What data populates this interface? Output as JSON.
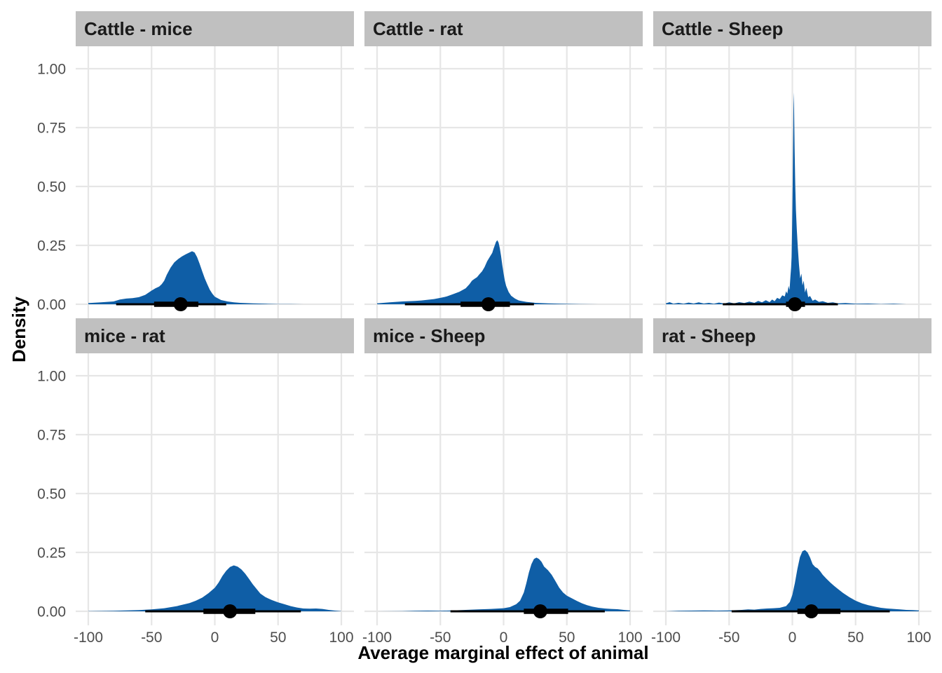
{
  "chart_data": {
    "type": "area",
    "description_of_marks": "posterior density (halfeye) per contrast with point estimate and interval",
    "xlabel": "Average marginal effect of animal",
    "ylabel": "Density",
    "xlim": [
      -100,
      100
    ],
    "ylim": [
      0,
      1.0
    ],
    "x_ticks": [
      -100,
      -50,
      0,
      50,
      100
    ],
    "x_tick_labels": [
      "-100",
      "-50",
      "0",
      "50",
      "100"
    ],
    "y_ticks": [
      0,
      0.25,
      0.5,
      0.75,
      1.0
    ],
    "y_tick_labels": [
      "0.00",
      "0.25",
      "0.50",
      "0.75",
      "1.00"
    ],
    "grid": true,
    "colors": {
      "density_fill": "#0f5ea6",
      "interval": "#000000",
      "strip": "#c0c0c0",
      "grid": "#e6e6e6"
    },
    "panels": [
      {
        "title": "Cattle - mice",
        "density": [
          [
            -100,
            0.005
          ],
          [
            -90,
            0.008
          ],
          [
            -80,
            0.012
          ],
          [
            -75,
            0.02
          ],
          [
            -70,
            0.024
          ],
          [
            -65,
            0.026
          ],
          [
            -60,
            0.03
          ],
          [
            -55,
            0.04
          ],
          [
            -50,
            0.058
          ],
          [
            -47,
            0.068
          ],
          [
            -44,
            0.075
          ],
          [
            -42,
            0.085
          ],
          [
            -40,
            0.1
          ],
          [
            -38,
            0.125
          ],
          [
            -35,
            0.155
          ],
          [
            -32,
            0.178
          ],
          [
            -29,
            0.192
          ],
          [
            -26,
            0.203
          ],
          [
            -23,
            0.212
          ],
          [
            -20,
            0.22
          ],
          [
            -18,
            0.225
          ],
          [
            -16,
            0.22
          ],
          [
            -14,
            0.2
          ],
          [
            -12,
            0.172
          ],
          [
            -10,
            0.14
          ],
          [
            -8,
            0.11
          ],
          [
            -6,
            0.085
          ],
          [
            -4,
            0.062
          ],
          [
            -2,
            0.045
          ],
          [
            0,
            0.032
          ],
          [
            5,
            0.018
          ],
          [
            10,
            0.012
          ],
          [
            15,
            0.008
          ],
          [
            20,
            0.006
          ],
          [
            30,
            0.004
          ],
          [
            40,
            0.002
          ],
          [
            50,
            0.001
          ],
          [
            60,
            0.001
          ],
          [
            70,
            0.0
          ]
        ],
        "point": -27,
        "interval_66": [
          -48,
          -13
        ],
        "interval_95": [
          -78,
          9
        ]
      },
      {
        "title": "Cattle - rat",
        "density": [
          [
            -100,
            0.004
          ],
          [
            -95,
            0.006
          ],
          [
            -90,
            0.008
          ],
          [
            -85,
            0.01
          ],
          [
            -80,
            0.012
          ],
          [
            -75,
            0.013
          ],
          [
            -70,
            0.014
          ],
          [
            -65,
            0.016
          ],
          [
            -60,
            0.019
          ],
          [
            -55,
            0.022
          ],
          [
            -50,
            0.027
          ],
          [
            -45,
            0.033
          ],
          [
            -40,
            0.043
          ],
          [
            -35,
            0.053
          ],
          [
            -30,
            0.068
          ],
          [
            -27,
            0.085
          ],
          [
            -25,
            0.1
          ],
          [
            -23,
            0.108
          ],
          [
            -21,
            0.115
          ],
          [
            -19,
            0.128
          ],
          [
            -17,
            0.14
          ],
          [
            -15,
            0.158
          ],
          [
            -13,
            0.182
          ],
          [
            -11,
            0.2
          ],
          [
            -9,
            0.218
          ],
          [
            -8,
            0.235
          ],
          [
            -7,
            0.25
          ],
          [
            -6,
            0.265
          ],
          [
            -5,
            0.272
          ],
          [
            -4,
            0.262
          ],
          [
            -3,
            0.238
          ],
          [
            -2,
            0.205
          ],
          [
            -1,
            0.165
          ],
          [
            0,
            0.13
          ],
          [
            1,
            0.1
          ],
          [
            2,
            0.078
          ],
          [
            4,
            0.052
          ],
          [
            6,
            0.036
          ],
          [
            9,
            0.024
          ],
          [
            12,
            0.016
          ],
          [
            18,
            0.01
          ],
          [
            25,
            0.006
          ],
          [
            35,
            0.004
          ],
          [
            45,
            0.002
          ],
          [
            60,
            0.001
          ],
          [
            75,
            0.0
          ]
        ],
        "point": -12,
        "interval_66": [
          -34,
          5
        ],
        "interval_95": [
          -78,
          24
        ]
      },
      {
        "title": "Cattle - Sheep",
        "density": [
          [
            -100,
            0.004
          ],
          [
            -97,
            0.009
          ],
          [
            -94,
            0.002
          ],
          [
            -90,
            0.006
          ],
          [
            -86,
            0.002
          ],
          [
            -82,
            0.007
          ],
          [
            -78,
            0.003
          ],
          [
            -74,
            0.008
          ],
          [
            -70,
            0.003
          ],
          [
            -66,
            0.006
          ],
          [
            -62,
            0.002
          ],
          [
            -58,
            0.007
          ],
          [
            -54,
            0.003
          ],
          [
            -50,
            0.008
          ],
          [
            -46,
            0.004
          ],
          [
            -42,
            0.009
          ],
          [
            -38,
            0.005
          ],
          [
            -34,
            0.011
          ],
          [
            -30,
            0.006
          ],
          [
            -27,
            0.014
          ],
          [
            -24,
            0.008
          ],
          [
            -21,
            0.017
          ],
          [
            -18,
            0.009
          ],
          [
            -16,
            0.02
          ],
          [
            -14,
            0.013
          ],
          [
            -12,
            0.027
          ],
          [
            -10,
            0.022
          ],
          [
            -8,
            0.038
          ],
          [
            -6,
            0.033
          ],
          [
            -5,
            0.055
          ],
          [
            -4,
            0.045
          ],
          [
            -3,
            0.078
          ],
          [
            -2.2,
            0.06
          ],
          [
            -1.5,
            0.12
          ],
          [
            -1,
            0.155
          ],
          [
            -0.6,
            0.2
          ],
          [
            -0.3,
            0.3
          ],
          [
            0,
            0.4
          ],
          [
            0.3,
            0.52
          ],
          [
            0.6,
            0.7
          ],
          [
            0.9,
            0.85
          ],
          [
            1.1,
            0.9
          ],
          [
            1.4,
            0.82
          ],
          [
            1.8,
            0.66
          ],
          [
            2.3,
            0.5
          ],
          [
            2.8,
            0.4
          ],
          [
            3.5,
            0.32
          ],
          [
            4.3,
            0.24
          ],
          [
            5.2,
            0.17
          ],
          [
            6.2,
            0.11
          ],
          [
            7.2,
            0.13
          ],
          [
            8,
            0.08
          ],
          [
            9,
            0.1
          ],
          [
            10,
            0.05
          ],
          [
            11,
            0.07
          ],
          [
            12.5,
            0.03
          ],
          [
            14,
            0.035
          ],
          [
            16,
            0.015
          ],
          [
            18,
            0.02
          ],
          [
            21,
            0.01
          ],
          [
            24,
            0.013
          ],
          [
            28,
            0.006
          ],
          [
            32,
            0.008
          ],
          [
            36,
            0.004
          ],
          [
            42,
            0.005
          ],
          [
            50,
            0.002
          ],
          [
            60,
            0.003
          ],
          [
            70,
            0.001
          ],
          [
            80,
            0.002
          ],
          [
            90,
            0.0
          ],
          [
            98,
            0.0
          ]
        ],
        "point": 2,
        "interval_66": [
          -5,
          10
        ],
        "interval_95": [
          -55,
          36
        ]
      },
      {
        "title": "mice - rat",
        "density": [
          [
            -100,
            0.001
          ],
          [
            -80,
            0.002
          ],
          [
            -70,
            0.004
          ],
          [
            -60,
            0.005
          ],
          [
            -50,
            0.008
          ],
          [
            -40,
            0.013
          ],
          [
            -30,
            0.022
          ],
          [
            -20,
            0.035
          ],
          [
            -15,
            0.045
          ],
          [
            -10,
            0.058
          ],
          [
            -5,
            0.077
          ],
          [
            0,
            0.1
          ],
          [
            3,
            0.122
          ],
          [
            6,
            0.15
          ],
          [
            9,
            0.172
          ],
          [
            12,
            0.188
          ],
          [
            15,
            0.195
          ],
          [
            18,
            0.19
          ],
          [
            21,
            0.178
          ],
          [
            24,
            0.16
          ],
          [
            27,
            0.138
          ],
          [
            30,
            0.115
          ],
          [
            33,
            0.095
          ],
          [
            36,
            0.075
          ],
          [
            40,
            0.06
          ],
          [
            45,
            0.048
          ],
          [
            50,
            0.038
          ],
          [
            55,
            0.03
          ],
          [
            60,
            0.022
          ],
          [
            65,
            0.016
          ],
          [
            70,
            0.012
          ],
          [
            75,
            0.011
          ],
          [
            80,
            0.012
          ],
          [
            85,
            0.01
          ],
          [
            90,
            0.006
          ],
          [
            95,
            0.003
          ],
          [
            100,
            0.001
          ]
        ],
        "point": 12,
        "interval_66": [
          -9,
          32
        ],
        "interval_95": [
          -55,
          68
        ]
      },
      {
        "title": "mice - Sheep",
        "density": [
          [
            -100,
            0.0
          ],
          [
            -80,
            0.001
          ],
          [
            -70,
            0.002
          ],
          [
            -60,
            0.003
          ],
          [
            -50,
            0.002
          ],
          [
            -40,
            0.004
          ],
          [
            -30,
            0.006
          ],
          [
            -20,
            0.008
          ],
          [
            -10,
            0.01
          ],
          [
            0,
            0.013
          ],
          [
            5,
            0.018
          ],
          [
            10,
            0.03
          ],
          [
            13,
            0.045
          ],
          [
            16,
            0.08
          ],
          [
            18,
            0.12
          ],
          [
            20,
            0.165
          ],
          [
            22,
            0.2
          ],
          [
            24,
            0.222
          ],
          [
            26,
            0.228
          ],
          [
            28,
            0.222
          ],
          [
            30,
            0.21
          ],
          [
            32,
            0.19
          ],
          [
            35,
            0.175
          ],
          [
            38,
            0.155
          ],
          [
            41,
            0.128
          ],
          [
            44,
            0.1
          ],
          [
            47,
            0.08
          ],
          [
            50,
            0.066
          ],
          [
            54,
            0.055
          ],
          [
            58,
            0.044
          ],
          [
            62,
            0.034
          ],
          [
            66,
            0.026
          ],
          [
            70,
            0.02
          ],
          [
            75,
            0.015
          ],
          [
            80,
            0.012
          ],
          [
            85,
            0.01
          ],
          [
            90,
            0.009
          ],
          [
            95,
            0.006
          ],
          [
            100,
            0.004
          ]
        ],
        "point": 29,
        "interval_66": [
          16,
          51
        ],
        "interval_95": [
          -42,
          80
        ]
      },
      {
        "title": "rat - Sheep",
        "density": [
          [
            -100,
            0.0
          ],
          [
            -90,
            0.002
          ],
          [
            -80,
            0.003
          ],
          [
            -70,
            0.004
          ],
          [
            -60,
            0.003
          ],
          [
            -50,
            0.004
          ],
          [
            -40,
            0.006
          ],
          [
            -35,
            0.008
          ],
          [
            -30,
            0.007
          ],
          [
            -25,
            0.01
          ],
          [
            -20,
            0.012
          ],
          [
            -15,
            0.013
          ],
          [
            -10,
            0.015
          ],
          [
            -5,
            0.022
          ],
          [
            -2,
            0.04
          ],
          [
            0,
            0.07
          ],
          [
            2,
            0.12
          ],
          [
            4,
            0.18
          ],
          [
            6,
            0.23
          ],
          [
            8,
            0.255
          ],
          [
            10,
            0.26
          ],
          [
            12,
            0.25
          ],
          [
            14,
            0.228
          ],
          [
            16,
            0.2
          ],
          [
            18,
            0.188
          ],
          [
            20,
            0.182
          ],
          [
            22,
            0.17
          ],
          [
            24,
            0.155
          ],
          [
            27,
            0.138
          ],
          [
            30,
            0.122
          ],
          [
            33,
            0.108
          ],
          [
            36,
            0.095
          ],
          [
            40,
            0.078
          ],
          [
            45,
            0.06
          ],
          [
            50,
            0.045
          ],
          [
            55,
            0.034
          ],
          [
            60,
            0.026
          ],
          [
            65,
            0.02
          ],
          [
            70,
            0.015
          ],
          [
            75,
            0.012
          ],
          [
            80,
            0.01
          ],
          [
            85,
            0.008
          ],
          [
            90,
            0.006
          ],
          [
            95,
            0.005
          ],
          [
            100,
            0.004
          ]
        ],
        "point": 15,
        "interval_66": [
          4,
          38
        ],
        "interval_95": [
          -48,
          77
        ]
      }
    ]
  }
}
